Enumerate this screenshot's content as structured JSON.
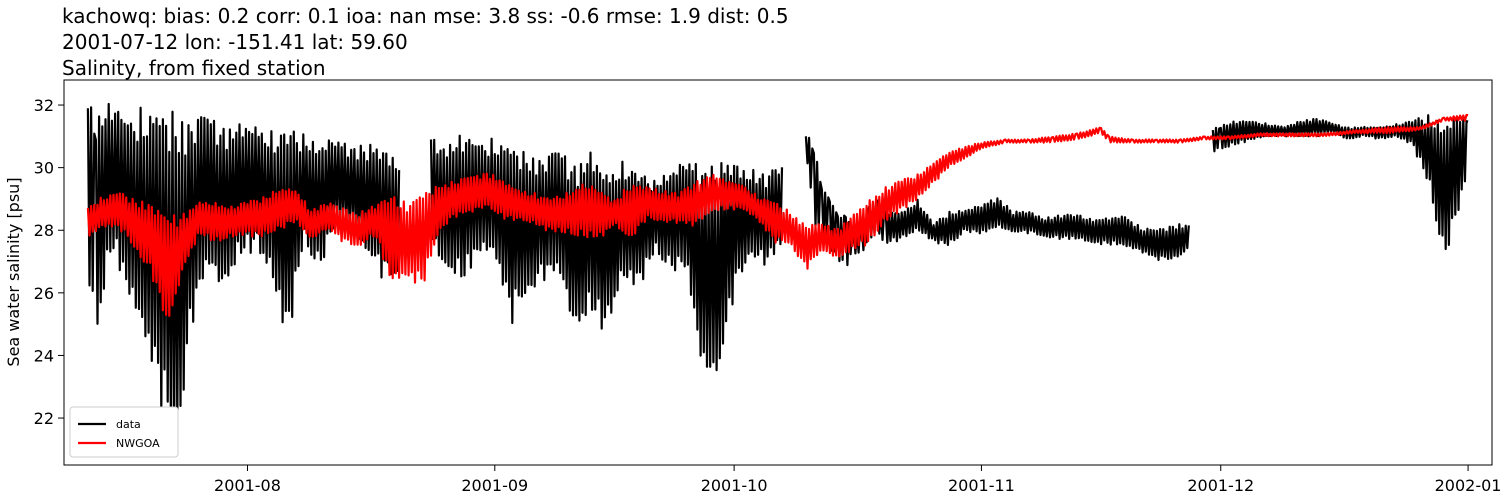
{
  "header": {
    "line1": "kachowq: bias: 0.2  corr: 0.1  ioa: nan  mse: 3.8  ss: -0.6  rmse: 1.9  dist: 0.5",
    "line2": "2001-07-12 lon: -151.41 lat: 59.60",
    "line3": "Salinity, from fixed station"
  },
  "chart_data": {
    "type": "line",
    "title": "kachowq: bias: 0.2  corr: 0.1  ioa: nan  mse: 3.8  ss: -0.6  rmse: 1.9  dist: 0.5",
    "subtitle": "2001-07-12 lon: -151.41 lat: 59.60 / Salinity, from fixed station",
    "xlabel": "",
    "ylabel": "Sea water salinity [psu]",
    "xlim": [
      "2001-07-09",
      "2002-01-04"
    ],
    "ylim": [
      20.5,
      32.8
    ],
    "yticks": [
      22,
      24,
      26,
      28,
      30,
      32
    ],
    "xticks": [
      "2001-08-01",
      "2001-09-01",
      "2001-10-01",
      "2001-11-01",
      "2001-12-01",
      "2002-01-01"
    ],
    "xtick_labels": [
      "2001-08",
      "2001-09",
      "2001-10",
      "2001-11",
      "2001-12",
      "2002-01"
    ],
    "grid": false,
    "legend_position": "lower-left",
    "series": [
      {
        "name": "data",
        "color": "#000000",
        "segments": [
          {
            "t": [
              "2001-07-12",
              "2001-07-13",
              "2001-07-15",
              "2001-07-17",
              "2001-07-19",
              "2001-07-21",
              "2001-07-23",
              "2001-07-25",
              "2001-07-27",
              "2001-07-29",
              "2001-07-31",
              "2001-08-02",
              "2001-08-04",
              "2001-08-06",
              "2001-08-08",
              "2001-08-10",
              "2001-08-12",
              "2001-08-14",
              "2001-08-16",
              "2001-08-18",
              "2001-08-20"
            ],
            "hi": [
              31.9,
              32.1,
              32.1,
              31.7,
              32.1,
              31.8,
              31.9,
              31.7,
              31.6,
              31.5,
              31.4,
              31.4,
              31.3,
              31.2,
              31.1,
              31.0,
              30.9,
              30.8,
              30.8,
              30.6,
              30.5
            ],
            "lo": [
              25.8,
              24.7,
              27.2,
              26.0,
              24.6,
              22.3,
              20.9,
              24.9,
              26.5,
              26.2,
              26.9,
              27.4,
              26.6,
              24.1,
              27.6,
              26.8,
              27.9,
              28.0,
              27.1,
              26.4,
              26.6
            ]
          },
          {
            "t": [
              "2001-08-24",
              "2001-08-26",
              "2001-08-28",
              "2001-08-30",
              "2001-09-01",
              "2001-09-03",
              "2001-09-05",
              "2001-09-07",
              "2001-09-09",
              "2001-09-11",
              "2001-09-13",
              "2001-09-15",
              "2001-09-17",
              "2001-09-19",
              "2001-09-21",
              "2001-09-23",
              "2001-09-25",
              "2001-09-27",
              "2001-09-29",
              "2001-10-01",
              "2001-10-03",
              "2001-10-05",
              "2001-10-07"
            ],
            "hi": [
              30.9,
              31.0,
              31.1,
              30.9,
              31.0,
              30.7,
              30.5,
              30.4,
              30.5,
              30.3,
              30.5,
              29.9,
              30.3,
              29.8,
              29.6,
              30.1,
              30.2,
              30.3,
              30.2,
              30.2,
              30.0,
              29.8,
              30.1
            ],
            "lo": [
              27.4,
              26.9,
              26.1,
              27.3,
              27.2,
              24.9,
              26.0,
              26.4,
              26.4,
              24.9,
              25.1,
              24.7,
              26.5,
              26.0,
              27.3,
              26.8,
              26.5,
              23.5,
              23.0,
              25.9,
              27.3,
              26.8,
              27.5
            ]
          },
          {
            "t": [
              "2001-10-10",
              "2001-10-11",
              "2001-10-12",
              "2001-10-13",
              "2001-10-14",
              "2001-10-15",
              "2001-10-16",
              "2001-10-17",
              "2001-10-18",
              "2001-10-19",
              "2001-10-20",
              "2001-10-22",
              "2001-10-24",
              "2001-10-26",
              "2001-10-28",
              "2001-10-30",
              "2001-11-01",
              "2001-11-03",
              "2001-11-05",
              "2001-11-07",
              "2001-11-09",
              "2001-11-11",
              "2001-11-13",
              "2001-11-15",
              "2001-11-17",
              "2001-11-19",
              "2001-11-21",
              "2001-11-23",
              "2001-11-25",
              "2001-11-27"
            ],
            "hi": [
              31.0,
              30.9,
              29.5,
              29.0,
              28.7,
              28.5,
              28.0,
              28.2,
              28.8,
              29.0,
              28.6,
              28.6,
              29.0,
              28.2,
              28.6,
              28.7,
              28.8,
              29.1,
              28.6,
              28.6,
              28.4,
              28.5,
              28.5,
              28.4,
              28.4,
              28.5,
              28.1,
              28.0,
              28.2,
              28.2
            ],
            "lo": [
              30.5,
              28.2,
              27.8,
              27.4,
              27.0,
              26.8,
              27.2,
              27.3,
              27.6,
              27.9,
              27.5,
              27.7,
              28.0,
              27.6,
              27.5,
              28.0,
              27.8,
              28.1,
              27.9,
              27.9,
              27.8,
              27.7,
              27.7,
              27.6,
              27.5,
              27.5,
              27.3,
              27.0,
              27.1,
              27.3
            ]
          },
          {
            "t": [
              "2001-11-30",
              "2001-12-01",
              "2001-12-03",
              "2001-12-05",
              "2001-12-07",
              "2001-12-09",
              "2001-12-11",
              "2001-12-13",
              "2001-12-15",
              "2001-12-17",
              "2001-12-19",
              "2001-12-21",
              "2001-12-23",
              "2001-12-25",
              "2001-12-27",
              "2001-12-29",
              "2001-12-31",
              "2002-01-01"
            ],
            "hi": [
              31.2,
              31.4,
              31.5,
              31.5,
              31.4,
              31.3,
              31.5,
              31.6,
              31.4,
              31.3,
              31.3,
              31.3,
              31.4,
              31.5,
              31.7,
              31.7,
              31.7,
              31.6
            ],
            "lo": [
              30.4,
              30.6,
              30.7,
              30.9,
              31.0,
              31.0,
              31.0,
              31.0,
              31.1,
              30.9,
              31.0,
              30.9,
              31.0,
              30.7,
              29.5,
              27.1,
              28.5,
              30.0
            ]
          }
        ]
      },
      {
        "name": "NWGOA",
        "color": "#ff0000",
        "segments": [
          {
            "t": [
              "2001-07-12",
              "2001-07-14",
              "2001-07-16",
              "2001-07-18",
              "2001-07-20",
              "2001-07-22",
              "2001-07-24",
              "2001-07-26",
              "2001-07-28",
              "2001-07-30",
              "2001-08-01",
              "2001-08-03",
              "2001-08-05",
              "2001-08-07",
              "2001-08-09",
              "2001-08-11",
              "2001-08-13",
              "2001-08-15",
              "2001-08-17",
              "2001-08-19",
              "2001-08-21",
              "2001-08-23",
              "2001-08-25",
              "2001-08-27",
              "2001-08-29",
              "2001-08-31",
              "2001-09-02",
              "2001-09-04",
              "2001-09-06",
              "2001-09-08",
              "2001-09-10",
              "2001-09-12",
              "2001-09-14",
              "2001-09-16",
              "2001-09-18",
              "2001-09-20",
              "2001-09-22",
              "2001-09-24",
              "2001-09-26",
              "2001-09-28",
              "2001-09-30",
              "2001-10-02",
              "2001-10-04",
              "2001-10-06",
              "2001-10-08",
              "2001-10-10",
              "2001-10-12",
              "2001-10-14",
              "2001-10-16",
              "2001-10-18",
              "2001-10-20",
              "2001-10-22",
              "2001-10-24",
              "2001-10-26",
              "2001-10-28",
              "2001-10-30",
              "2001-11-01",
              "2001-11-04",
              "2001-11-07",
              "2001-11-10",
              "2001-11-13",
              "2001-11-16",
              "2001-11-17",
              "2001-11-20",
              "2001-11-23",
              "2001-11-26",
              "2001-11-29",
              "2001-12-02",
              "2001-12-06",
              "2001-12-10",
              "2001-12-14",
              "2001-12-18",
              "2001-12-22",
              "2001-12-26",
              "2001-12-29",
              "2002-01-01"
            ],
            "hi": [
              28.8,
              29.1,
              29.2,
              29.0,
              28.9,
              28.4,
              28.6,
              28.9,
              28.9,
              28.8,
              28.9,
              29.1,
              29.4,
              29.3,
              28.7,
              28.9,
              28.7,
              28.6,
              28.8,
              29.2,
              29.0,
              29.2,
              29.5,
              29.6,
              29.7,
              29.9,
              29.6,
              29.3,
              29.2,
              29.0,
              29.2,
              29.6,
              29.3,
              29.0,
              29.5,
              29.4,
              29.3,
              29.2,
              29.5,
              29.9,
              29.6,
              29.5,
              29.1,
              28.9,
              28.6,
              28.2,
              28.2,
              28.1,
              28.5,
              29.0,
              29.4,
              29.6,
              29.8,
              30.2,
              30.5,
              30.7,
              30.8,
              30.9,
              30.9,
              31.0,
              31.1,
              31.3,
              31.0,
              30.9,
              30.9,
              30.9,
              31.0,
              31.0,
              31.1,
              31.1,
              31.1,
              31.2,
              31.3,
              31.3,
              31.6,
              31.7
            ],
            "lo": [
              27.8,
              28.1,
              28.0,
              27.4,
              26.5,
              24.7,
              26.8,
              27.8,
              27.6,
              27.8,
              27.8,
              27.8,
              28.0,
              28.2,
              27.7,
              28.0,
              27.6,
              27.5,
              27.8,
              26.3,
              26.5,
              26.1,
              28.0,
              28.4,
              28.5,
              28.8,
              28.3,
              28.3,
              28.2,
              27.9,
              27.9,
              27.8,
              27.6,
              28.2,
              27.6,
              28.3,
              28.3,
              28.2,
              28.1,
              28.6,
              28.6,
              28.7,
              28.3,
              27.6,
              27.6,
              26.7,
              27.3,
              27.1,
              27.3,
              27.6,
              28.3,
              28.6,
              29.0,
              29.5,
              30.0,
              30.3,
              30.6,
              30.8,
              30.8,
              30.8,
              30.9,
              31.1,
              30.8,
              30.8,
              30.8,
              30.8,
              30.9,
              30.9,
              31.0,
              31.0,
              31.0,
              31.1,
              31.1,
              31.2,
              31.5,
              31.5
            ]
          }
        ]
      }
    ]
  }
}
